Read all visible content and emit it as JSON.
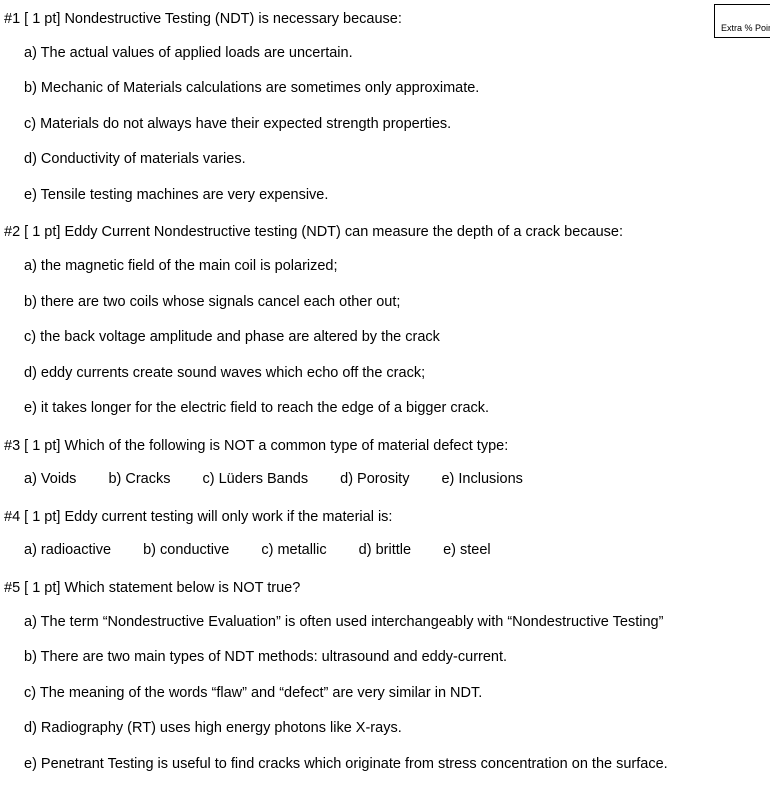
{
  "extra_box_label": "Extra % Points",
  "questions": [
    {
      "id": "q1",
      "stem": "#1 [ 1 pt]  Nondestructive Testing (NDT) is necessary because:",
      "layout": "vertical",
      "options": [
        "a)  The actual values of applied loads are uncertain.",
        "b)  Mechanic of Materials calculations are sometimes only approximate.",
        "c)  Materials do not always have their expected strength properties.",
        "d)  Conductivity of materials varies.",
        "e)  Tensile testing machines are very expensive."
      ]
    },
    {
      "id": "q2",
      "stem": "#2 [ 1 pt]  Eddy Current Nondestructive testing (NDT) can measure the depth of a crack because:",
      "layout": "vertical",
      "options": [
        "a)  the magnetic field of the main coil is polarized;",
        "b)  there are two coils whose signals cancel each other out;",
        "c)  the back voltage amplitude and phase are altered by the crack",
        "d)  eddy currents create sound waves which echo off the crack;",
        "e)  it takes longer for the electric field to reach the edge of a bigger crack."
      ]
    },
    {
      "id": "q3",
      "stem": "#3 [ 1 pt]  Which of the following is NOT a common type of material defect type:",
      "layout": "horizontal",
      "options": [
        "a)  Voids",
        "b)  Cracks",
        "c)  Lüders Bands",
        "d)  Porosity",
        "e)  Inclusions"
      ]
    },
    {
      "id": "q4",
      "stem": "#4 [ 1 pt]  Eddy current testing will only work if the material is:",
      "layout": "horizontal",
      "options": [
        "a)  radioactive",
        "b)  conductive",
        "c)  metallic",
        "d)  brittle",
        "e)   steel"
      ]
    },
    {
      "id": "q5",
      "stem": "#5 [ 1 pt]  Which statement below is NOT true?",
      "layout": "vertical",
      "options": [
        "a) The term “Nondestructive Evaluation” is often used interchangeably with “Nondestructive Testing”",
        "b)  There are two main types of NDT methods: ultrasound and eddy-current.",
        "c)  The meaning of the words “flaw” and “defect” are very similar in NDT.",
        "d)  Radiography (RT) uses high energy photons like X-rays.",
        "e)  Penetrant Testing is useful to find cracks which originate from stress concentration on the surface."
      ]
    }
  ]
}
